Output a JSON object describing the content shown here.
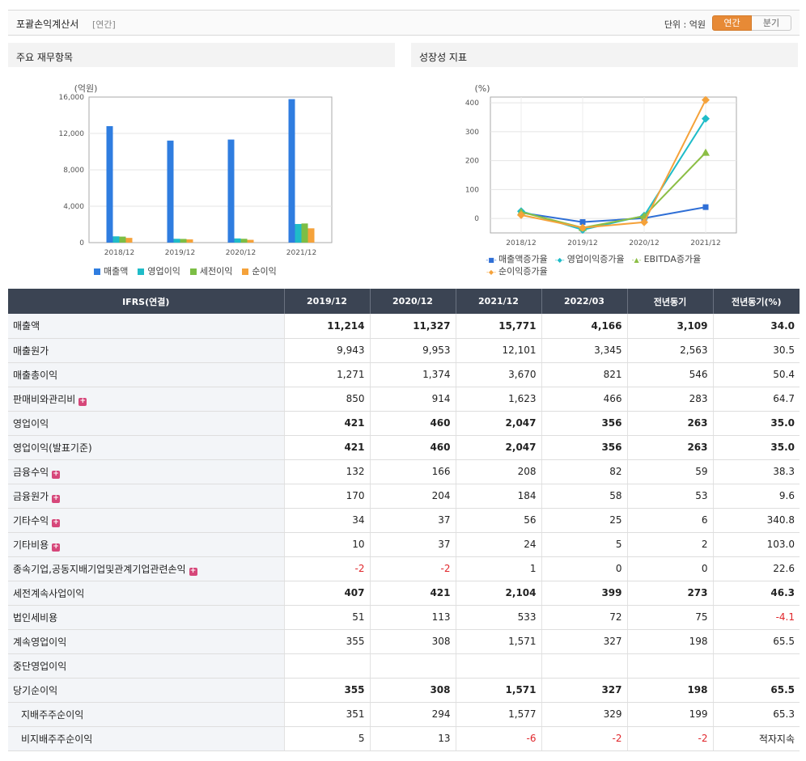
{
  "header": {
    "title": "포괄손익계산서",
    "period": "[연간]",
    "unit": "단위 : 억원",
    "toggle_annual": "연간",
    "toggle_quarter": "분기"
  },
  "colors": {
    "sales": "#2f7de0",
    "op_income": "#1fbcc8",
    "pretax_income": "#7cbe45",
    "net_income": "#f5a23a",
    "header_bg": "#3b4453",
    "negative": "#e0262b",
    "accent": "#e78a36"
  },
  "panels": {
    "left_title": "주요 재무항목",
    "right_title": "성장성 지표"
  },
  "chart_data": [
    {
      "type": "bar",
      "unit_label": "(억원)",
      "categories": [
        "2018/12",
        "2019/12",
        "2020/12",
        "2021/12"
      ],
      "ylim": [
        0,
        16000
      ],
      "yticks": [
        0,
        4000,
        8000,
        12000,
        16000
      ],
      "ytick_labels": [
        "0",
        "4,000",
        "8,000",
        "12,000",
        "16,000"
      ],
      "grid": true,
      "legend_position": "bottom",
      "series": [
        {
          "name": "매출액",
          "color": "#2f7de0",
          "values": [
            12800,
            11214,
            11327,
            15771
          ]
        },
        {
          "name": "영업이익",
          "color": "#1fbcc8",
          "values": [
            690,
            421,
            460,
            2047
          ]
        },
        {
          "name": "세전이익",
          "color": "#7cbe45",
          "values": [
            660,
            407,
            421,
            2104
          ]
        },
        {
          "name": "순이익",
          "color": "#f5a23a",
          "values": [
            520,
            355,
            308,
            1571
          ]
        }
      ]
    },
    {
      "type": "line",
      "unit_label": "(%)",
      "categories": [
        "2018/12",
        "2019/12",
        "2020/12",
        "2021/12"
      ],
      "ylim": [
        -50,
        420
      ],
      "yticks": [
        0,
        100,
        200,
        300,
        400
      ],
      "ytick_labels": [
        "0",
        "100",
        "200",
        "300",
        "400"
      ],
      "grid": true,
      "legend_position": "bottom",
      "series": [
        {
          "name": "매출액증가율",
          "color": "#2f6fd6",
          "marker": "square",
          "values": [
            20,
            -12.4,
            1.0,
            39.2
          ]
        },
        {
          "name": "영업이익증가율",
          "color": "#1fbcc8",
          "marker": "diamond",
          "values": [
            25,
            -39,
            9.3,
            345
          ]
        },
        {
          "name": "EBITDA증가율",
          "color": "#8cbe45",
          "marker": "triangle",
          "values": [
            22,
            -32,
            8,
            228
          ]
        },
        {
          "name": "순이익증가율",
          "color": "#f5a23a",
          "marker": "diamond",
          "values": [
            12,
            -32,
            -13,
            410
          ]
        }
      ]
    }
  ],
  "table": {
    "columns": [
      "IFRS(연결)",
      "2019/12",
      "2020/12",
      "2021/12",
      "2022/03",
      "전년동기",
      "전년동기(%)"
    ],
    "rows": [
      {
        "label": "매출액",
        "bold": true,
        "plus": false,
        "sub": false,
        "values": [
          "11,214",
          "11,327",
          "15,771",
          "4,166",
          "3,109",
          "34.0"
        ]
      },
      {
        "label": "매출원가",
        "bold": false,
        "plus": false,
        "sub": false,
        "values": [
          "9,943",
          "9,953",
          "12,101",
          "3,345",
          "2,563",
          "30.5"
        ]
      },
      {
        "label": "매출총이익",
        "bold": false,
        "plus": false,
        "sub": false,
        "values": [
          "1,271",
          "1,374",
          "3,670",
          "821",
          "546",
          "50.4"
        ]
      },
      {
        "label": "판매비와관리비",
        "bold": false,
        "plus": true,
        "sub": false,
        "values": [
          "850",
          "914",
          "1,623",
          "466",
          "283",
          "64.7"
        ]
      },
      {
        "label": "영업이익",
        "bold": true,
        "plus": false,
        "sub": false,
        "values": [
          "421",
          "460",
          "2,047",
          "356",
          "263",
          "35.0"
        ]
      },
      {
        "label": "영업이익(발표기준)",
        "bold": true,
        "plus": false,
        "sub": false,
        "values": [
          "421",
          "460",
          "2,047",
          "356",
          "263",
          "35.0"
        ]
      },
      {
        "label": "금융수익",
        "bold": false,
        "plus": true,
        "sub": false,
        "values": [
          "132",
          "166",
          "208",
          "82",
          "59",
          "38.3"
        ]
      },
      {
        "label": "금융원가",
        "bold": false,
        "plus": true,
        "sub": false,
        "values": [
          "170",
          "204",
          "184",
          "58",
          "53",
          "9.6"
        ]
      },
      {
        "label": "기타수익",
        "bold": false,
        "plus": true,
        "sub": false,
        "values": [
          "34",
          "37",
          "56",
          "25",
          "6",
          "340.8"
        ]
      },
      {
        "label": "기타비용",
        "bold": false,
        "plus": true,
        "sub": false,
        "values": [
          "10",
          "37",
          "24",
          "5",
          "2",
          "103.0"
        ]
      },
      {
        "label": "종속기업,공동지배기업및관계기업관련손익",
        "bold": false,
        "plus": true,
        "sub": false,
        "values": [
          "-2",
          "-2",
          "1",
          "0",
          "0",
          "22.6"
        ]
      },
      {
        "label": "세전계속사업이익",
        "bold": true,
        "plus": false,
        "sub": false,
        "values": [
          "407",
          "421",
          "2,104",
          "399",
          "273",
          "46.3"
        ]
      },
      {
        "label": "법인세비용",
        "bold": false,
        "plus": false,
        "sub": false,
        "values": [
          "51",
          "113",
          "533",
          "72",
          "75",
          "-4.1"
        ]
      },
      {
        "label": "계속영업이익",
        "bold": false,
        "plus": false,
        "sub": false,
        "values": [
          "355",
          "308",
          "1,571",
          "327",
          "198",
          "65.5"
        ]
      },
      {
        "label": "중단영업이익",
        "bold": false,
        "plus": false,
        "sub": false,
        "values": [
          "",
          "",
          "",
          "",
          "",
          ""
        ]
      },
      {
        "label": "당기순이익",
        "bold": true,
        "plus": false,
        "sub": false,
        "values": [
          "355",
          "308",
          "1,571",
          "327",
          "198",
          "65.5"
        ]
      },
      {
        "label": "지배주주순이익",
        "bold": false,
        "plus": false,
        "sub": true,
        "values": [
          "351",
          "294",
          "1,577",
          "329",
          "199",
          "65.3"
        ]
      },
      {
        "label": "비지배주주순이익",
        "bold": false,
        "plus": false,
        "sub": true,
        "values": [
          "5",
          "13",
          "-6",
          "-2",
          "-2",
          "적자지속"
        ]
      }
    ]
  }
}
